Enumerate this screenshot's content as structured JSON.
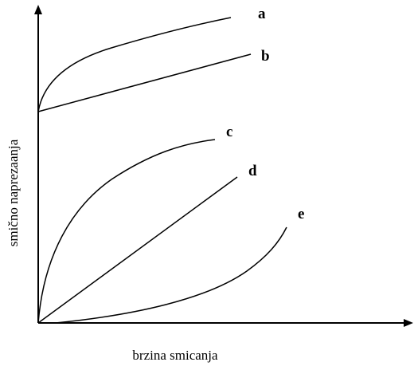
{
  "axes": {
    "x_label": "brzina smicanja",
    "y_label": "smično naprezaanja"
  },
  "curves": [
    {
      "label": "a"
    },
    {
      "label": "b"
    },
    {
      "label": "c"
    },
    {
      "label": "d"
    },
    {
      "label": "e"
    }
  ]
}
